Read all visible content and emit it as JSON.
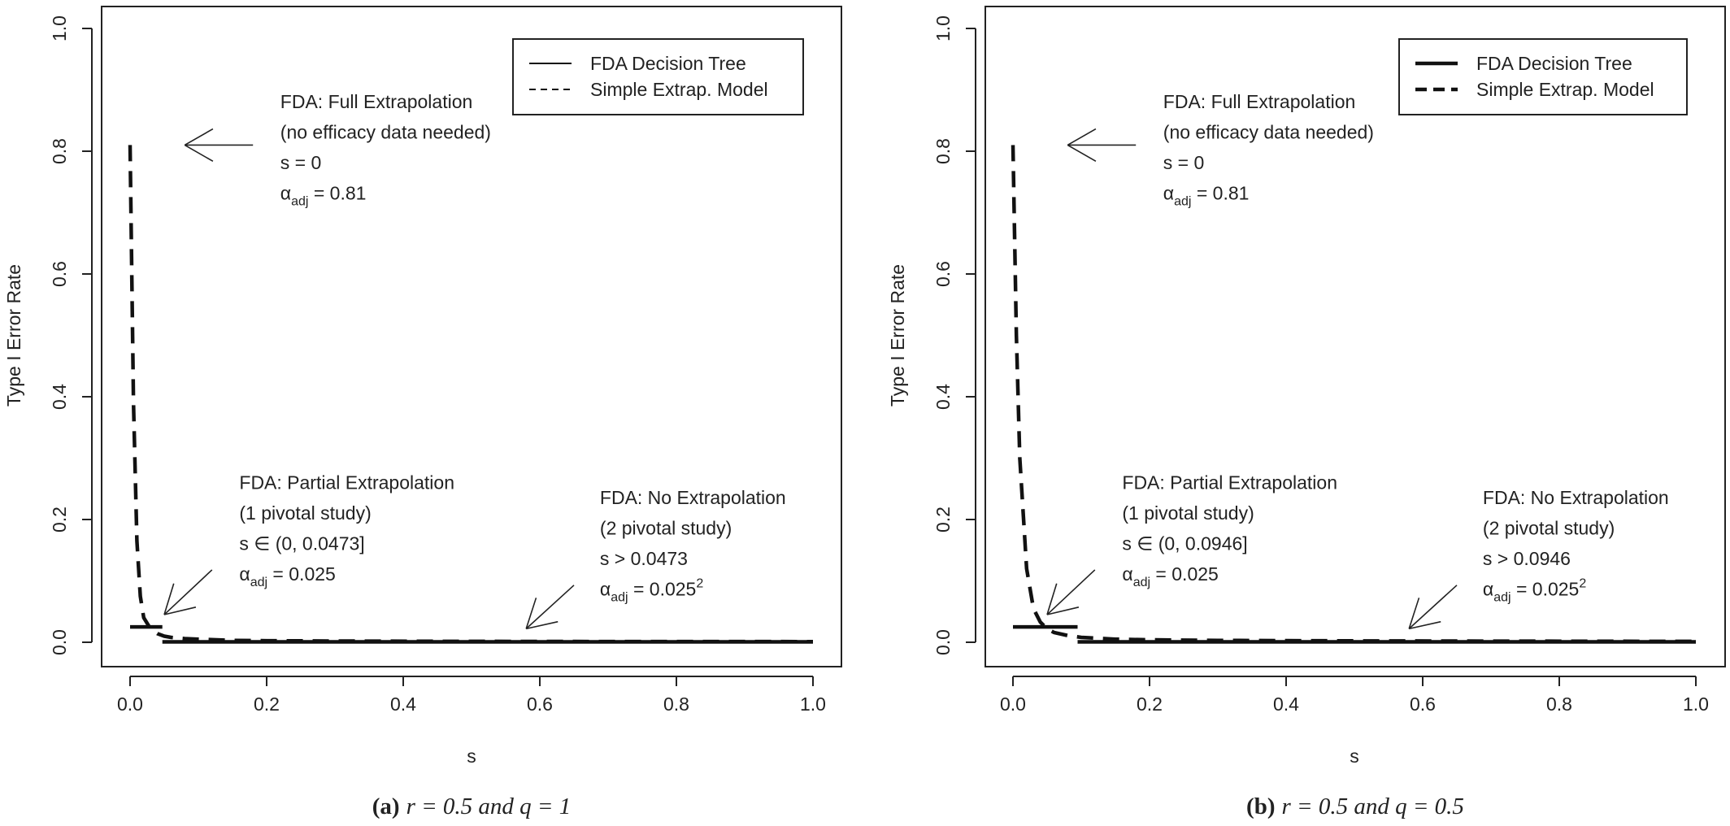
{
  "chart_data": [
    {
      "type": "line",
      "ylabel": "Type I Error Rate",
      "xlabel": "s",
      "xlim": [
        0,
        1
      ],
      "ylim": [
        0,
        1
      ],
      "xticks": [
        "0.0",
        "0.2",
        "0.4",
        "0.6",
        "0.8",
        "1.0"
      ],
      "yticks": [
        "0.0",
        "0.2",
        "0.4",
        "0.6",
        "0.8",
        "1.0"
      ],
      "legend_position": "top-right",
      "caption": {
        "prefix": "(a)",
        "text": "r = 0.5 and q = 1"
      },
      "legend": [
        {
          "label": "FDA Decision Tree",
          "style": "solid"
        },
        {
          "label": "Simple Extrap. Model",
          "style": "dashed"
        }
      ],
      "series": [
        {
          "name": "FDA Decision Tree",
          "style": "solid",
          "segments": [
            [
              [
                0.0,
                0.025
              ],
              [
                0.0473,
                0.025
              ]
            ],
            [
              [
                0.0473,
                0.000625
              ],
              [
                1.0,
                0.000625
              ]
            ]
          ]
        },
        {
          "name": "Simple Extrap. Model",
          "style": "dashed",
          "points": [
            [
              0.0,
              0.81
            ],
            [
              0.005,
              0.39
            ],
            [
              0.01,
              0.165
            ],
            [
              0.015,
              0.075
            ],
            [
              0.02,
              0.04
            ],
            [
              0.03,
              0.022
            ],
            [
              0.04,
              0.014
            ],
            [
              0.05,
              0.01
            ],
            [
              0.06,
              0.008
            ],
            [
              0.08,
              0.006
            ],
            [
              0.1,
              0.005
            ],
            [
              0.15,
              0.003
            ],
            [
              0.2,
              0.0025
            ],
            [
              0.3,
              0.002
            ],
            [
              0.5,
              0.0015
            ],
            [
              0.7,
              0.0012
            ],
            [
              1.0,
              0.001
            ]
          ]
        }
      ],
      "annotations": [
        {
          "lines": [
            "FDA: Full Extrapolation",
            "(no efficacy data needed)",
            "s = 0"
          ],
          "alpha_value": "0.81",
          "alpha_superscript": "",
          "arrow_tip": [
            0.08,
            0.81
          ],
          "arrow_tail": [
            0.18,
            0.81
          ]
        },
        {
          "lines": [
            "FDA: Partial Extrapolation",
            "(1 pivotal study)",
            "s ∈ (0, 0.0473]"
          ],
          "alpha_value": "0.025",
          "alpha_superscript": "",
          "arrow_tip": [
            0.05,
            0.045
          ],
          "arrow_tail": [
            0.12,
            0.118
          ]
        },
        {
          "lines": [
            "FDA: No Extrapolation",
            "(2 pivotal study)",
            "s > 0.0473"
          ],
          "alpha_value": "0.025",
          "alpha_superscript": "2",
          "arrow_tip": [
            0.58,
            0.022
          ],
          "arrow_tail": [
            0.65,
            0.093
          ]
        }
      ]
    },
    {
      "type": "line",
      "ylabel": "Type I Error Rate",
      "xlabel": "s",
      "xlim": [
        0,
        1
      ],
      "ylim": [
        0,
        1
      ],
      "xticks": [
        "0.0",
        "0.2",
        "0.4",
        "0.6",
        "0.8",
        "1.0"
      ],
      "yticks": [
        "0.0",
        "0.2",
        "0.4",
        "0.6",
        "0.8",
        "1.0"
      ],
      "legend_position": "top-right",
      "caption": {
        "prefix": "(b)",
        "text": "r = 0.5 and q = 0.5"
      },
      "legend": [
        {
          "label": "FDA Decision Tree",
          "style": "solid"
        },
        {
          "label": "Simple Extrap. Model",
          "style": "dashed"
        }
      ],
      "series": [
        {
          "name": "FDA Decision Tree",
          "style": "solid",
          "segments": [
            [
              [
                0.0,
                0.025
              ],
              [
                0.0946,
                0.025
              ]
            ],
            [
              [
                0.0946,
                0.000625
              ],
              [
                1.0,
                0.000625
              ]
            ]
          ]
        },
        {
          "name": "Simple Extrap. Model",
          "style": "dashed",
          "points": [
            [
              0.0,
              0.81
            ],
            [
              0.005,
              0.5
            ],
            [
              0.01,
              0.3
            ],
            [
              0.02,
              0.12
            ],
            [
              0.03,
              0.055
            ],
            [
              0.04,
              0.033
            ],
            [
              0.05,
              0.022
            ],
            [
              0.06,
              0.016
            ],
            [
              0.08,
              0.011
            ],
            [
              0.1,
              0.008
            ],
            [
              0.15,
              0.005
            ],
            [
              0.2,
              0.004
            ],
            [
              0.3,
              0.003
            ],
            [
              0.5,
              0.0022
            ],
            [
              0.7,
              0.0018
            ],
            [
              1.0,
              0.0015
            ]
          ]
        }
      ],
      "annotations": [
        {
          "lines": [
            "FDA: Full Extrapolation",
            "(no efficacy data needed)",
            "s = 0"
          ],
          "alpha_value": "0.81",
          "alpha_superscript": "",
          "arrow_tip": [
            0.08,
            0.81
          ],
          "arrow_tail": [
            0.18,
            0.81
          ]
        },
        {
          "lines": [
            "FDA: Partial Extrapolation",
            "(1 pivotal study)",
            "s ∈ (0, 0.0946]"
          ],
          "alpha_value": "0.025",
          "alpha_superscript": "",
          "arrow_tip": [
            0.05,
            0.045
          ],
          "arrow_tail": [
            0.12,
            0.118
          ]
        },
        {
          "lines": [
            "FDA: No Extrapolation",
            "(2 pivotal study)",
            "s > 0.0946"
          ],
          "alpha_value": "0.025",
          "alpha_superscript": "2",
          "arrow_tip": [
            0.58,
            0.022
          ],
          "arrow_tail": [
            0.65,
            0.093
          ]
        }
      ]
    }
  ]
}
